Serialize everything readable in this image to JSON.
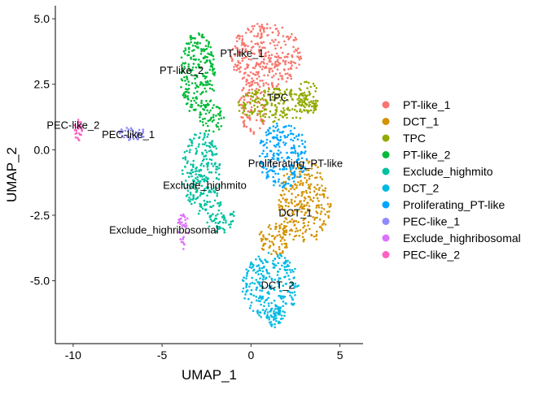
{
  "chart_data": {
    "type": "scatter",
    "title": "",
    "xlabel": "UMAP_1",
    "ylabel": "UMAP_2",
    "xlim": [
      -11.0,
      6.3
    ],
    "ylim": [
      -7.4,
      5.5
    ],
    "x_ticks": [
      -10,
      -5,
      0,
      5
    ],
    "x_tick_labels": [
      "-10",
      "-5",
      "0",
      "5"
    ],
    "y_ticks": [
      5.0,
      2.5,
      0.0,
      -2.5,
      -5.0
    ],
    "y_tick_labels": [
      "5.0",
      "2.5",
      "0.0",
      "-2.5",
      "-5.0"
    ],
    "grid": false,
    "legend_position": "right",
    "series": [
      {
        "name": "PT-like_1",
        "color": "#F8766D",
        "label_x": -0.5,
        "label_y": 3.55,
        "regions": [
          {
            "cx": 0.9,
            "cy": 3.6,
            "rx": 2.1,
            "ry": 1.25,
            "n": 320
          },
          {
            "cx": 0.1,
            "cy": 1.6,
            "rx": 0.8,
            "ry": 1.0,
            "n": 80
          }
        ]
      },
      {
        "name": "DCT_1",
        "color": "#D39200",
        "label_x": 2.5,
        "label_y": -2.55,
        "regions": [
          {
            "cx": 3.0,
            "cy": -2.0,
            "rx": 1.5,
            "ry": 1.6,
            "n": 260
          },
          {
            "cx": 1.4,
            "cy": -3.4,
            "rx": 1.0,
            "ry": 0.6,
            "n": 80
          }
        ]
      },
      {
        "name": "TPC",
        "color": "#93AA00",
        "label_x": 1.5,
        "label_y": 1.85,
        "regions": [
          {
            "cx": 1.4,
            "cy": 1.7,
            "rx": 2.2,
            "ry": 0.65,
            "n": 200
          },
          {
            "cx": 3.2,
            "cy": 2.0,
            "rx": 0.6,
            "ry": 0.7,
            "n": 60
          }
        ]
      },
      {
        "name": "PT-like_2",
        "color": "#00BA38",
        "label_x": -3.9,
        "label_y": 2.9,
        "regions": [
          {
            "cx": -3.0,
            "cy": 2.9,
            "rx": 1.0,
            "ry": 1.6,
            "n": 240
          },
          {
            "cx": -2.2,
            "cy": 1.2,
            "rx": 0.7,
            "ry": 0.6,
            "n": 50
          }
        ]
      },
      {
        "name": "Exclude_highmito",
        "color": "#00C19F",
        "label_x": -2.6,
        "label_y": -1.5,
        "regions": [
          {
            "cx": -2.8,
            "cy": -0.9,
            "rx": 1.1,
            "ry": 1.6,
            "n": 240
          },
          {
            "cx": -1.7,
            "cy": -2.6,
            "rx": 0.8,
            "ry": 0.6,
            "n": 60
          }
        ]
      },
      {
        "name": "DCT_2",
        "color": "#00B9E3",
        "label_x": 1.5,
        "label_y": -5.3,
        "regions": [
          {
            "cx": 1.1,
            "cy": -5.2,
            "rx": 1.6,
            "ry": 1.3,
            "n": 260
          },
          {
            "cx": 1.4,
            "cy": -6.3,
            "rx": 0.5,
            "ry": 0.5,
            "n": 40
          }
        ]
      },
      {
        "name": "Proliferating_PT-like",
        "color": "#00A5FF",
        "label_x": 2.5,
        "label_y": -0.65,
        "regions": [
          {
            "cx": 1.8,
            "cy": -0.2,
            "rx": 1.4,
            "ry": 1.25,
            "n": 220
          }
        ]
      },
      {
        "name": "PEC-like_1",
        "color": "#8F8AFF",
        "label_x": -6.9,
        "label_y": 0.45,
        "regions": [
          {
            "cx": -6.7,
            "cy": 0.6,
            "rx": 0.85,
            "ry": 0.25,
            "n": 40
          }
        ]
      },
      {
        "name": "Exclude_highribosomal",
        "color": "#DB72FB",
        "label_x": -4.9,
        "label_y": -3.2,
        "regions": [
          {
            "cx": -3.8,
            "cy": -3.1,
            "rx": 0.35,
            "ry": 0.7,
            "n": 36
          }
        ]
      },
      {
        "name": "PEC-like_2",
        "color": "#FF61C3",
        "label_x": -10.0,
        "label_y": 0.8,
        "regions": [
          {
            "cx": -9.7,
            "cy": 0.75,
            "rx": 0.25,
            "ry": 0.4,
            "n": 26
          }
        ]
      }
    ]
  }
}
